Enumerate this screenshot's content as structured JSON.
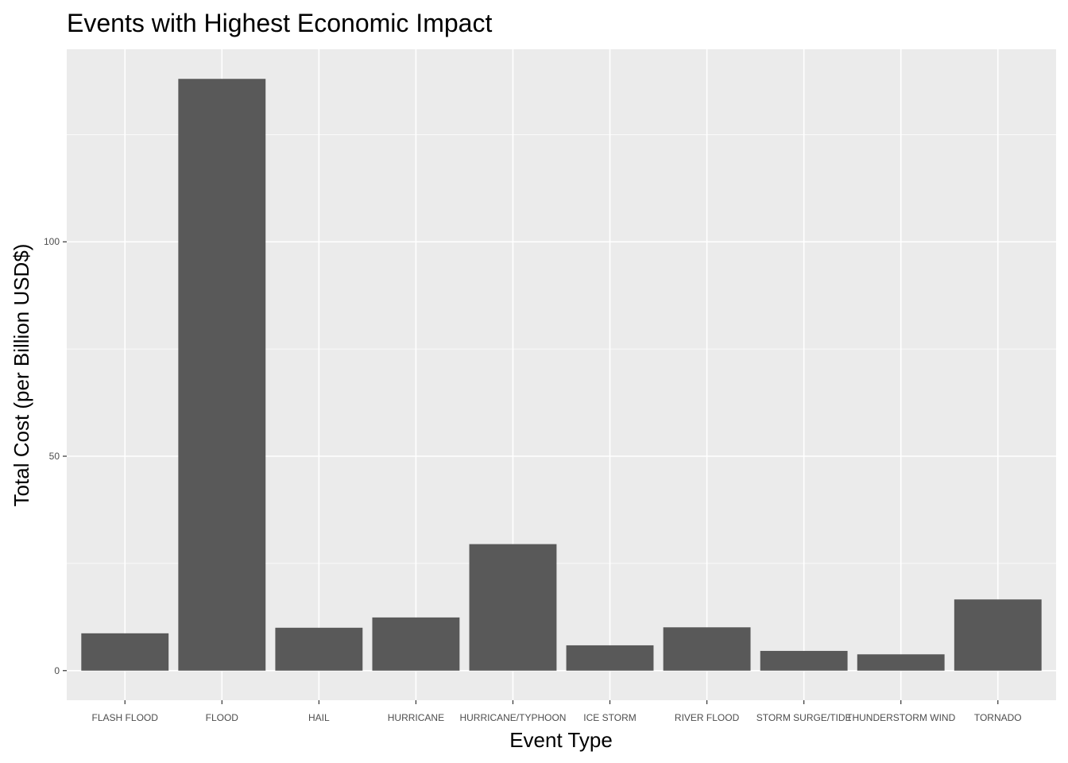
{
  "chart_data": {
    "type": "bar",
    "title": "Events with Highest Economic Impact",
    "xlabel": "Event Type",
    "ylabel": "Total Cost (per Billion USD$)",
    "categories": [
      "FLASH FLOOD",
      "FLOOD",
      "HAIL",
      "HURRICANE",
      "HURRICANE/TYPHOON",
      "ICE STORM",
      "RIVER FLOOD",
      "STORM SURGE/TIDE",
      "THUNDERSTORM WIND",
      "TORNADO"
    ],
    "values": [
      8.7,
      138.0,
      10.0,
      12.4,
      29.5,
      5.9,
      10.1,
      4.6,
      3.8,
      16.6
    ],
    "ylim": [
      -6.9,
      144.9
    ],
    "yticks": [
      0,
      50,
      100
    ],
    "grid": true,
    "colors": {
      "bar": "#595959",
      "panel": "#ebebeb",
      "grid": "#ffffff",
      "tick_text": "#4d4d4d"
    }
  }
}
